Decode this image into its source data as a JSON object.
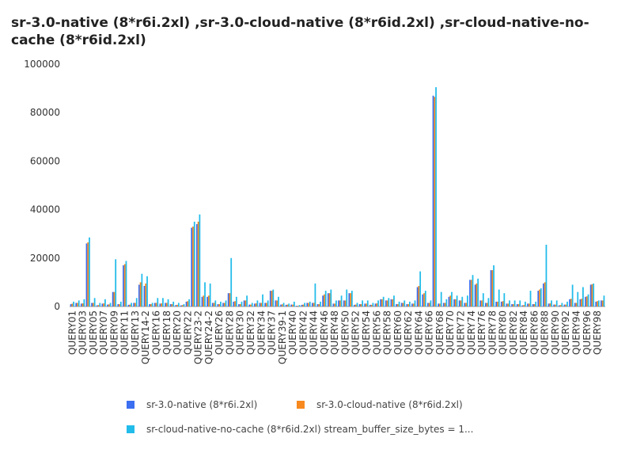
{
  "chart_data": {
    "type": "bar",
    "title": "sr-3.0-native (8*r6i.2xl) ,sr-3.0-cloud-native (8*r6id.2xl) ,sr-cloud-native-no-cache (8*r6id.2xl)",
    "categories": [
      "QUERY01",
      null,
      "QUERY03",
      null,
      "QUERY05",
      null,
      "QUERY07",
      null,
      "QUERY09",
      null,
      "QUERY11",
      null,
      "QUERY13",
      null,
      "QUERY14-2",
      null,
      "QUERY16",
      null,
      "QUERY18",
      null,
      "QUERY20",
      null,
      "QUERY22",
      null,
      "QUERY23-2",
      null,
      "QUERY24-2",
      null,
      "QUERY26",
      null,
      "QUERY28",
      null,
      "QUERY30",
      null,
      "QUERY32",
      null,
      "QUERY34",
      null,
      "QUERY37",
      null,
      "QUERY39-1",
      null,
      "QUERY40",
      null,
      "QUERY42",
      null,
      "QUERY44",
      null,
      "QUERY46",
      null,
      "QUERY48",
      null,
      "QUERY50",
      null,
      "QUERY52",
      null,
      "QUERY54",
      null,
      "QUERY56",
      null,
      "QUERY58",
      null,
      "QUERY60",
      null,
      "QUERY62",
      null,
      "QUERY64",
      null,
      "QUERY66",
      null,
      "QUERY68",
      null,
      "QUERY70",
      null,
      "QUERY72",
      null,
      "QUERY74",
      null,
      "QUERY76",
      null,
      "QUERY78",
      null,
      "QUERY80",
      null,
      "QUERY82",
      null,
      "QUERY84",
      null,
      "QUERY86",
      null,
      "QUERY88",
      null,
      "QUERY90",
      null,
      "QUERY92",
      null,
      "QUERY94",
      null,
      "QUERY96",
      null,
      "QUERY98",
      null
    ],
    "series": [
      {
        "name": "sr-3.0-native (8*r6i.2xl)",
        "color": "#3b6ef0",
        "values": [
          1000,
          1500,
          1200,
          26000,
          1500,
          500,
          1200,
          800,
          6000,
          1000,
          17000,
          700,
          1500,
          9000,
          8500,
          1000,
          1500,
          1200,
          1500,
          1000,
          600,
          500,
          2000,
          32500,
          34000,
          4000,
          4000,
          1500,
          1000,
          1500,
          5500,
          2000,
          1000,
          2500,
          800,
          1200,
          1500,
          1500,
          6500,
          2500,
          800,
          700,
          800,
          300,
          700,
          1500,
          1500,
          1000,
          4500,
          5500,
          1200,
          2500,
          2500,
          5500,
          700,
          1000,
          1200,
          700,
          1200,
          3000,
          2500,
          3000,
          1000,
          1500,
          1000,
          1200,
          8000,
          5000,
          1500,
          87000,
          1200,
          1500,
          4000,
          3000,
          2500,
          1500,
          11000,
          9000,
          2500,
          1500,
          15000,
          2000,
          2000,
          1200,
          1000,
          1000,
          500,
          1200,
          1000,
          6500,
          9500,
          1200,
          800,
          500,
          800,
          3000,
          1500,
          3000,
          4000,
          9000,
          2000,
          2500
        ]
      },
      {
        "name": "sr-3.0-cloud-native (8*r6id.2xl)",
        "color": "#f7891e",
        "values": [
          1200,
          1500,
          1300,
          26500,
          1500,
          600,
          1300,
          900,
          6000,
          1000,
          17500,
          800,
          1500,
          10000,
          9500,
          1000,
          1500,
          1300,
          1500,
          1000,
          700,
          600,
          2200,
          33000,
          35000,
          4500,
          4500,
          1500,
          1000,
          1500,
          5500,
          2200,
          1000,
          2500,
          800,
          1300,
          1500,
          1500,
          6500,
          2500,
          900,
          800,
          800,
          300,
          800,
          1500,
          1500,
          1000,
          5000,
          5500,
          1200,
          2500,
          2500,
          5500,
          800,
          1000,
          1200,
          700,
          1300,
          3000,
          2500,
          3000,
          1000,
          1500,
          1000,
          1200,
          8500,
          5500,
          1500,
          86500,
          1200,
          1500,
          4500,
          3000,
          2500,
          1500,
          11000,
          9500,
          2500,
          1500,
          15000,
          2000,
          2200,
          1200,
          1000,
          1000,
          600,
          1200,
          1000,
          7000,
          10000,
          1300,
          800,
          600,
          800,
          3200,
          1500,
          3200,
          4200,
          9200,
          2200,
          2500
        ]
      },
      {
        "name": "sr-cloud-native-no-cache (8*r6id.2xl) stream_buffer_size_bytes = 1...",
        "color": "#22bcea",
        "values": [
          2000,
          2500,
          3000,
          28500,
          3500,
          1500,
          3000,
          1500,
          19500,
          2000,
          18800,
          1500,
          3500,
          13500,
          12500,
          1500,
          3500,
          3500,
          3000,
          2000,
          1500,
          1000,
          3000,
          35000,
          38000,
          10000,
          9500,
          2500,
          2000,
          2500,
          20000,
          4000,
          2000,
          4500,
          1500,
          2500,
          5000,
          2500,
          7000,
          4000,
          1500,
          1200,
          2000,
          600,
          1500,
          2000,
          9500,
          2000,
          6500,
          7000,
          2500,
          4500,
          7000,
          6500,
          1500,
          2500,
          2500,
          1500,
          2500,
          4000,
          3500,
          4500,
          2000,
          2500,
          2000,
          2500,
          14500,
          6500,
          2500,
          90500,
          6000,
          3000,
          6000,
          4500,
          4000,
          4500,
          13000,
          11500,
          5500,
          3500,
          17000,
          7000,
          5500,
          2500,
          2500,
          2500,
          2000,
          6500,
          2000,
          7500,
          25500,
          2500,
          2500,
          1500,
          2000,
          9000,
          6000,
          8000,
          5000,
          9500,
          2500,
          4500
        ]
      }
    ],
    "ylim": [
      0,
      100000
    ],
    "yticks": [
      0,
      20000,
      40000,
      60000,
      80000,
      100000
    ],
    "grid": false
  }
}
